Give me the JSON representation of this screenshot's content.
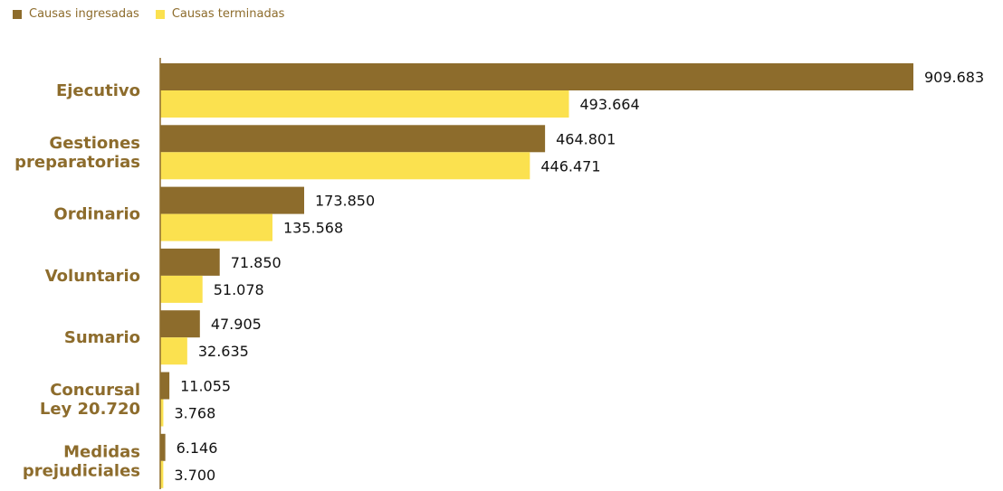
{
  "colors": {
    "ingresadas": "#8d6c2c",
    "terminadas": "#fbe14f",
    "category_text": "#8d6c2c",
    "value_text": "#111111",
    "axis": "#8d6c2c"
  },
  "legend": {
    "ingresadas": "Causas ingresadas",
    "terminadas": "Causas terminadas"
  },
  "chart_data": {
    "type": "bar",
    "orientation": "horizontal",
    "categories": [
      [
        "Ejecutivo"
      ],
      [
        "Gestiones",
        "preparatorias"
      ],
      [
        "Ordinario"
      ],
      [
        "Voluntario"
      ],
      [
        "Sumario"
      ],
      [
        "Concursal",
        "Ley 20.720"
      ],
      [
        "Medidas",
        "prejudiciales"
      ]
    ],
    "series": [
      {
        "name": "Causas ingresadas",
        "values": [
          909683,
          464801,
          173850,
          71850,
          47905,
          11055,
          6146
        ],
        "labels": [
          "909.683",
          "464.801",
          "173.850",
          "71.850",
          "47.905",
          "11.055",
          "6.146"
        ]
      },
      {
        "name": "Causas terminadas",
        "values": [
          493664,
          446471,
          135568,
          51078,
          32635,
          3768,
          3700
        ],
        "labels": [
          "493.664",
          "446.471",
          "135.568",
          "51.078",
          "32.635",
          "3.768",
          "3.700"
        ]
      }
    ],
    "xlim": [
      0,
      909683
    ],
    "grid": false,
    "legend_position": "top-left"
  }
}
